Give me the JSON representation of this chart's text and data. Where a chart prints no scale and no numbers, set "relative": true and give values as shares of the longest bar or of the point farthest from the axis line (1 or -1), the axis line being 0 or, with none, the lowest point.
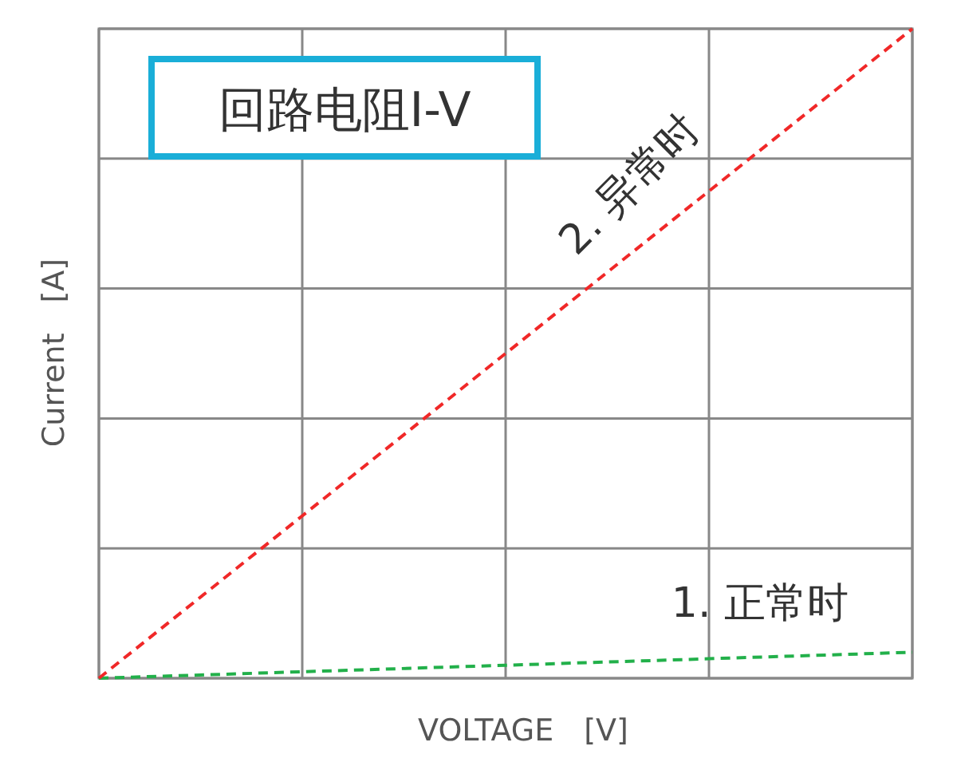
{
  "chart_data": {
    "type": "line",
    "title": "回路电阻I-V",
    "xlabel": "VOLTAGE　[V]",
    "ylabel": "Current　[A]",
    "relative": true,
    "categories": [
      null,
      null,
      null,
      null,
      null
    ],
    "grid": true,
    "line_style": "dashed",
    "marker": "none",
    "series": [
      {
        "name": "1. 正常时",
        "color": "#22b04a",
        "values": [
          0,
          0.01,
          0.02,
          0.03,
          0.04
        ]
      },
      {
        "name": "2. 异常时",
        "color": "#f02828",
        "values": [
          0,
          0.25,
          0.5,
          0.75,
          1
        ]
      }
    ]
  }
}
